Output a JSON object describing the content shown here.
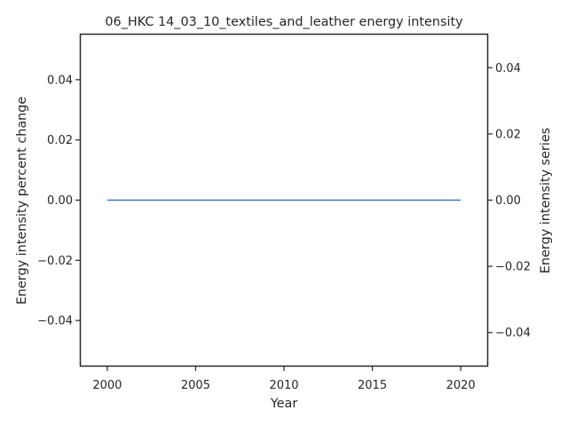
{
  "chart_data": {
    "type": "line",
    "title": "06_HKC 14_03_10_textiles_and_leather energy intensity",
    "xlabel": "Year",
    "ylabel_left": "Energy intensity percent change",
    "ylabel_right": "Energy intensity series",
    "xlim": [
      1998.5,
      2021.5
    ],
    "ylim_left": [
      -0.055,
      0.055
    ],
    "ylim_right": [
      -0.05,
      0.05
    ],
    "x_ticks": [
      2000,
      2005,
      2010,
      2015,
      2020
    ],
    "x_tick_labels": [
      "2000",
      "2005",
      "2010",
      "2015",
      "2020"
    ],
    "y_left_ticks": [
      -0.04,
      -0.02,
      0.0,
      0.02,
      0.04
    ],
    "y_left_tick_labels": [
      "−0.04",
      "−0.02",
      "0.00",
      "0.02",
      "0.04"
    ],
    "y_right_ticks": [
      -0.04,
      -0.02,
      0.0,
      0.02,
      0.04
    ],
    "y_right_tick_labels": [
      "−0.04",
      "−0.02",
      "0.00",
      "0.02",
      "0.04"
    ],
    "grid": false,
    "series": [
      {
        "axis": "left",
        "color": "#4c72b0",
        "x": [
          2000,
          2001,
          2002,
          2003,
          2004,
          2005,
          2006,
          2007,
          2008,
          2009,
          2010,
          2011,
          2012,
          2013,
          2014,
          2015,
          2016,
          2017,
          2018,
          2019,
          2020
        ],
        "values": [
          0,
          0,
          0,
          0,
          0,
          0,
          0,
          0,
          0,
          0,
          0,
          0,
          0,
          0,
          0,
          0,
          0,
          0,
          0,
          0,
          0
        ]
      }
    ]
  }
}
